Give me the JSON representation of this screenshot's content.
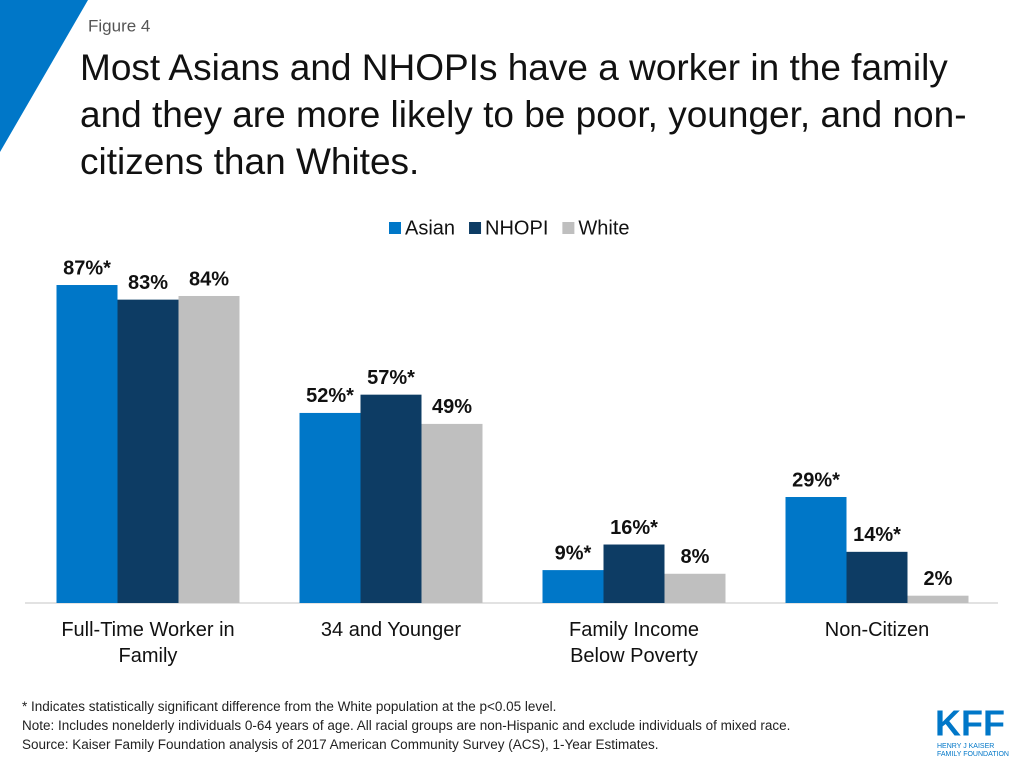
{
  "chart_data": {
    "type": "bar",
    "figure_label": "Figure 4",
    "title": "Most Asians and NHOPIs have a worker in the family and they are more likely to be poor, younger, and non-citizens than Whites.",
    "categories": [
      "Full-Time Worker in Family",
      "34 and Younger",
      "Family Income Below Poverty",
      "Non-Citizen"
    ],
    "series": [
      {
        "name": "Asian",
        "color": "#0077c8",
        "values": [
          87,
          52,
          9,
          29
        ],
        "value_labels": [
          "87%*",
          "52%*",
          "9%*",
          "29%*"
        ]
      },
      {
        "name": "NHOPI",
        "color": "#0d3c64",
        "values": [
          83,
          57,
          16,
          14
        ],
        "value_labels": [
          "83%",
          "57%*",
          "16%*",
          "14%*"
        ]
      },
      {
        "name": "White",
        "color": "#bfbfbf",
        "values": [
          84,
          49,
          8,
          2
        ],
        "value_labels": [
          "84%",
          "49%",
          "8%",
          "2%"
        ]
      }
    ],
    "legend": "top",
    "notes": [
      "* Indicates statistically significant difference from the White population at the p<0.05 level.",
      "Note: Includes nonelderly individuals 0-64 years of age. All racial groups are non-Hispanic and exclude individuals of mixed race.",
      "Source: Kaiser Family Foundation analysis of 2017 American Community Survey (ACS), 1-Year Estimates."
    ],
    "logo": {
      "mark": "KFF",
      "line1": "HENRY J KAISER",
      "line2": "FAMILY FOUNDATION"
    }
  }
}
